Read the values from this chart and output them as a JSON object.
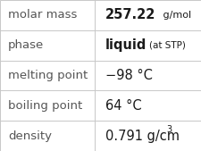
{
  "rows": [
    {
      "label": "molar mass",
      "value_plain": "257.22 g/mol"
    },
    {
      "label": "phase",
      "value_plain": "liquid (at STP)"
    },
    {
      "label": "melting point",
      "value_plain": "−98 °C"
    },
    {
      "label": "boiling point",
      "value_plain": "64 °C"
    },
    {
      "label": "density",
      "value_plain": "0.791 g/cm³"
    }
  ],
  "col_split": 0.47,
  "background": "#ffffff",
  "border_color": "#c8c8c8",
  "label_color": "#555555",
  "value_color": "#1a1a1a",
  "label_fontsize": 9.5,
  "value_fontsize": 10.5,
  "fig_width": 2.26,
  "fig_height": 1.69,
  "dpi": 100
}
